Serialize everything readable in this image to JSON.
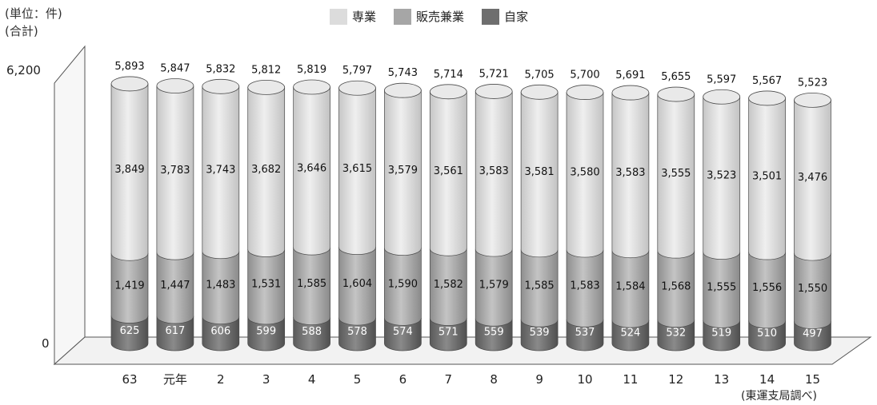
{
  "unit_label": "(単位：件)",
  "total_label": "(合計)",
  "source": "(東運支局調べ)",
  "colors": {
    "senjo": "#dcdcdc",
    "hanbai": "#a6a6a6",
    "jika": "#6e6e6e"
  },
  "chart_data": {
    "type": "bar",
    "stacked": true,
    "categories": [
      "63",
      "元年",
      "2",
      "3",
      "4",
      "5",
      "6",
      "7",
      "8",
      "9",
      "10",
      "11",
      "12",
      "13",
      "14",
      "15"
    ],
    "series": [
      {
        "name": "自家",
        "values": [
          625,
          617,
          606,
          599,
          588,
          578,
          574,
          571,
          559,
          539,
          537,
          524,
          532,
          519,
          510,
          497
        ]
      },
      {
        "name": "販売兼業",
        "values": [
          1419,
          1447,
          1483,
          1531,
          1585,
          1604,
          1590,
          1582,
          1579,
          1585,
          1583,
          1584,
          1568,
          1555,
          1556,
          1550
        ]
      },
      {
        "name": "専業",
        "values": [
          3849,
          3783,
          3743,
          3682,
          3646,
          3615,
          3579,
          3561,
          3583,
          3581,
          3580,
          3583,
          3555,
          3523,
          3501,
          3476
        ]
      }
    ],
    "totals": [
      5893,
      5847,
      5832,
      5812,
      5819,
      5797,
      5743,
      5714,
      5721,
      5705,
      5700,
      5691,
      5655,
      5597,
      5567,
      5523
    ],
    "y_tick_labels": [
      "0",
      "6,200"
    ],
    "ylim": [
      0,
      6200
    ],
    "legend": [
      "専業",
      "販売兼業",
      "自家"
    ],
    "legend_position": "top"
  }
}
